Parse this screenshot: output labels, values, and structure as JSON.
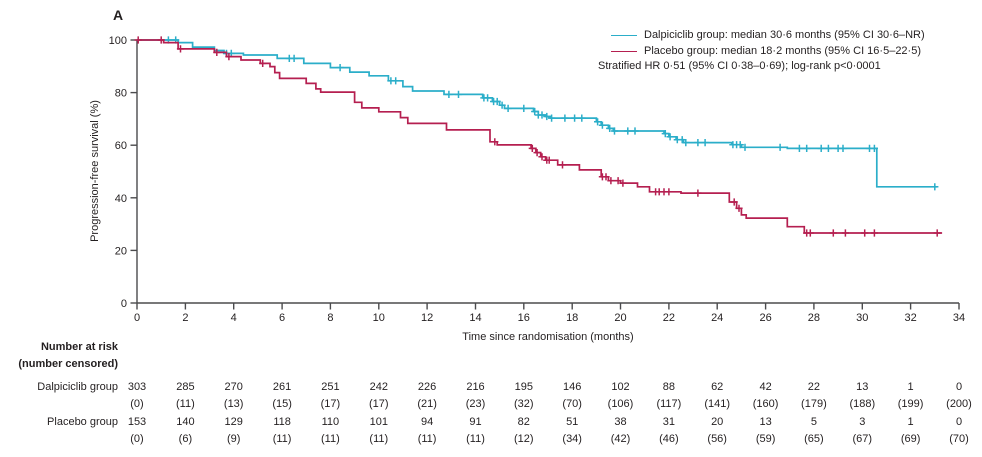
{
  "panel_label": "A",
  "colors": {
    "dalpiciclib": "#2BAEC9",
    "placebo": "#B51F50",
    "axis": "#4b4b4d",
    "text": "#231f20"
  },
  "legend": {
    "entries": [
      {
        "label": "Dalpiciclib group: median 30·6 months (95% CI 30·6–NR)",
        "series": "dalpiciclib"
      },
      {
        "label": "Placebo group: median 18·2 months (95% CI 16·5–22·5)",
        "series": "placebo"
      }
    ],
    "note": "Stratified HR 0·51 (95% CI 0·38–0·69); log-rank p<0·0001"
  },
  "chart_data": {
    "type": "line",
    "subtype": "kaplan-meier-step",
    "title": "",
    "xlabel": "Time since randomisation (months)",
    "ylabel": "Progression-free survival (%)",
    "xlim": [
      0,
      34
    ],
    "ylim": [
      0,
      100
    ],
    "xticks": [
      0,
      2,
      4,
      6,
      8,
      10,
      12,
      14,
      16,
      18,
      20,
      22,
      24,
      26,
      28,
      30,
      32,
      34
    ],
    "yticks": [
      0,
      20,
      40,
      60,
      80,
      100
    ],
    "grid": false,
    "legend_position": "top-right",
    "series": [
      {
        "name": "Dalpiciclib group",
        "color_key": "dalpiciclib",
        "steps": [
          [
            0,
            100
          ],
          [
            1.7,
            99.0
          ],
          [
            2.3,
            97.3
          ],
          [
            3.2,
            96.0
          ],
          [
            3.6,
            94.9
          ],
          [
            4.4,
            94.3
          ],
          [
            5.8,
            93.0
          ],
          [
            6.9,
            91.1
          ],
          [
            8.0,
            89.5
          ],
          [
            8.8,
            87.8
          ],
          [
            9.6,
            86.4
          ],
          [
            10.4,
            84.5
          ],
          [
            11.0,
            82.3
          ],
          [
            11.4,
            80.6
          ],
          [
            12.7,
            79.3
          ],
          [
            14.3,
            78.0
          ],
          [
            14.7,
            76.6
          ],
          [
            15.0,
            75.2
          ],
          [
            15.2,
            74.0
          ],
          [
            16.4,
            72.8
          ],
          [
            16.6,
            71.5
          ],
          [
            16.9,
            70.9
          ],
          [
            17.1,
            70.3
          ],
          [
            19.0,
            68.9
          ],
          [
            19.2,
            67.6
          ],
          [
            19.5,
            66.4
          ],
          [
            19.7,
            65.4
          ],
          [
            21.8,
            64.4
          ],
          [
            22.0,
            63.2
          ],
          [
            22.3,
            62.1
          ],
          [
            22.6,
            61.0
          ],
          [
            24.6,
            60.2
          ],
          [
            25.0,
            59.2
          ],
          [
            26.9,
            58.8
          ],
          [
            30.6,
            44.2
          ],
          [
            33.1,
            44.2
          ]
        ],
        "censor_times": [
          1.3,
          1.6,
          3.7,
          3.9,
          6.3,
          6.5,
          8.4,
          10.5,
          10.7,
          12.9,
          13.3,
          14.35,
          14.5,
          14.75,
          14.9,
          15.1,
          15.35,
          16.0,
          16.45,
          16.6,
          16.75,
          16.95,
          17.15,
          17.7,
          18.1,
          18.4,
          19.05,
          19.25,
          19.55,
          19.75,
          20.3,
          20.6,
          21.85,
          22.05,
          22.35,
          22.55,
          22.7,
          23.2,
          23.5,
          24.65,
          24.8,
          24.95,
          25.15,
          26.6,
          27.4,
          27.7,
          28.3,
          28.6,
          29.0,
          29.2,
          30.3,
          30.5,
          33.0
        ]
      },
      {
        "name": "Placebo group",
        "color_key": "placebo",
        "steps": [
          [
            0,
            100
          ],
          [
            1.1,
            99.0
          ],
          [
            1.7,
            96.6
          ],
          [
            3.2,
            95.3
          ],
          [
            3.7,
            93.7
          ],
          [
            4.3,
            92.4
          ],
          [
            5.1,
            91.1
          ],
          [
            5.5,
            89.9
          ],
          [
            5.7,
            87.6
          ],
          [
            5.9,
            85.4
          ],
          [
            7.0,
            83.5
          ],
          [
            7.4,
            81.4
          ],
          [
            7.6,
            80.2
          ],
          [
            9.0,
            76.3
          ],
          [
            9.3,
            74.2
          ],
          [
            10.0,
            72.7
          ],
          [
            10.9,
            70.5
          ],
          [
            11.2,
            68.3
          ],
          [
            12.8,
            65.8
          ],
          [
            14.6,
            61.3
          ],
          [
            14.9,
            60.1
          ],
          [
            16.3,
            58.8
          ],
          [
            16.5,
            57.2
          ],
          [
            16.7,
            55.6
          ],
          [
            16.9,
            54.3
          ],
          [
            17.4,
            52.5
          ],
          [
            18.3,
            50.6
          ],
          [
            19.2,
            48.0
          ],
          [
            19.5,
            46.5
          ],
          [
            20.0,
            45.6
          ],
          [
            20.7,
            44.2
          ],
          [
            21.2,
            42.3
          ],
          [
            22.5,
            41.8
          ],
          [
            24.5,
            38.4
          ],
          [
            24.8,
            36.0
          ],
          [
            25.0,
            33.5
          ],
          [
            25.2,
            32.3
          ],
          [
            26.9,
            29.0
          ],
          [
            27.6,
            26.6
          ],
          [
            33.3,
            26.6
          ]
        ],
        "censor_times": [
          0.05,
          1.0,
          1.8,
          3.3,
          3.8,
          5.2,
          14.8,
          16.35,
          16.55,
          16.75,
          16.95,
          17.05,
          17.6,
          19.25,
          19.4,
          19.6,
          19.9,
          20.1,
          21.45,
          21.6,
          21.8,
          22.0,
          23.2,
          24.7,
          24.9,
          27.7,
          27.85,
          28.8,
          29.3,
          30.1,
          30.5,
          33.1
        ]
      }
    ]
  },
  "risk_table": {
    "header_line1": "Number at risk",
    "header_line2": "(number censored)",
    "months": [
      0,
      2,
      4,
      6,
      8,
      10,
      12,
      14,
      16,
      18,
      20,
      22,
      24,
      26,
      28,
      30,
      32,
      34
    ],
    "rows": [
      {
        "label": "Dalpiciclib group",
        "at_risk": [
          303,
          285,
          270,
          261,
          251,
          242,
          226,
          216,
          195,
          146,
          102,
          88,
          62,
          42,
          22,
          13,
          1,
          0
        ],
        "censored": [
          "(0)",
          "(11)",
          "(13)",
          "(15)",
          "(17)",
          "(17)",
          "(21)",
          "(23)",
          "(32)",
          "(70)",
          "(106)",
          "(117)",
          "(141)",
          "(160)",
          "(179)",
          "(188)",
          "(199)",
          "(200)"
        ]
      },
      {
        "label": "Placebo group",
        "at_risk": [
          153,
          140,
          129,
          118,
          110,
          101,
          94,
          91,
          82,
          51,
          38,
          31,
          20,
          13,
          5,
          3,
          1,
          0
        ],
        "censored": [
          "(0)",
          "(6)",
          "(9)",
          "(11)",
          "(11)",
          "(11)",
          "(11)",
          "(11)",
          "(12)",
          "(34)",
          "(42)",
          "(46)",
          "(56)",
          "(59)",
          "(65)",
          "(67)",
          "(69)",
          "(70)"
        ]
      }
    ]
  }
}
